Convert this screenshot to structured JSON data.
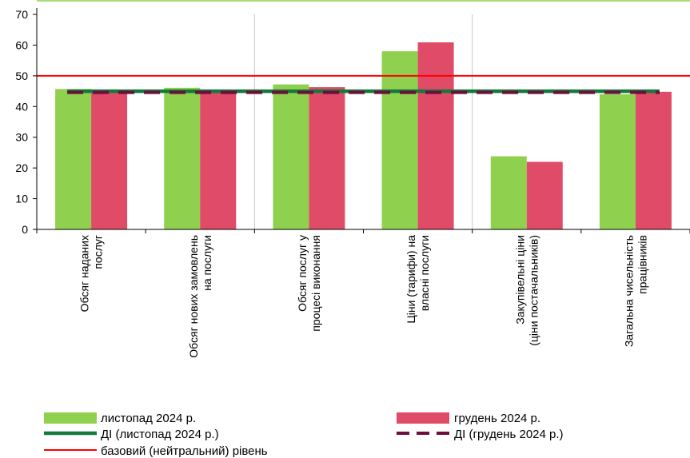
{
  "chart_data": {
    "type": "bar",
    "title": "",
    "xlabel": "",
    "ylabel": "",
    "ylim": [
      0,
      70
    ],
    "yticks": [
      0,
      10,
      20,
      30,
      40,
      50,
      60,
      70
    ],
    "categories": [
      [
        "Обсяг наданих",
        "послуг"
      ],
      [
        "Обсяг нових замовлень",
        "на послуги"
      ],
      [
        "Обсяг послуг у",
        "процесі виконання"
      ],
      [
        "Ціни (тарифи) на",
        "власні послуги"
      ],
      [
        "Закупівельні ціни",
        "(ціни постачальників)"
      ],
      [
        "Загальна чисельність",
        "працівників"
      ]
    ],
    "series": [
      {
        "name": "листопад 2024 р.",
        "color": "#8fd14f",
        "values": [
          45.7,
          46.1,
          47.2,
          58.0,
          23.8,
          44.0
        ]
      },
      {
        "name": "грудень 2024 р.",
        "color": "#e04b68",
        "values": [
          44.5,
          44.6,
          46.3,
          60.9,
          22.0,
          44.8
        ]
      }
    ],
    "lines": [
      {
        "name": "ДІ (листопад 2024 р.)",
        "color": "#127a3a",
        "style": "solid",
        "value": 45.0
      },
      {
        "name": "ДІ (грудень 2024 р.)",
        "color": "#6b0f3c",
        "style": "dashed",
        "value": 44.6
      },
      {
        "name": "базовий (нейтральний) рівень",
        "color": "#ff0000",
        "style": "solid",
        "value": 50
      }
    ],
    "grid": "vertical-group-separators",
    "legend_position": "bottom"
  }
}
